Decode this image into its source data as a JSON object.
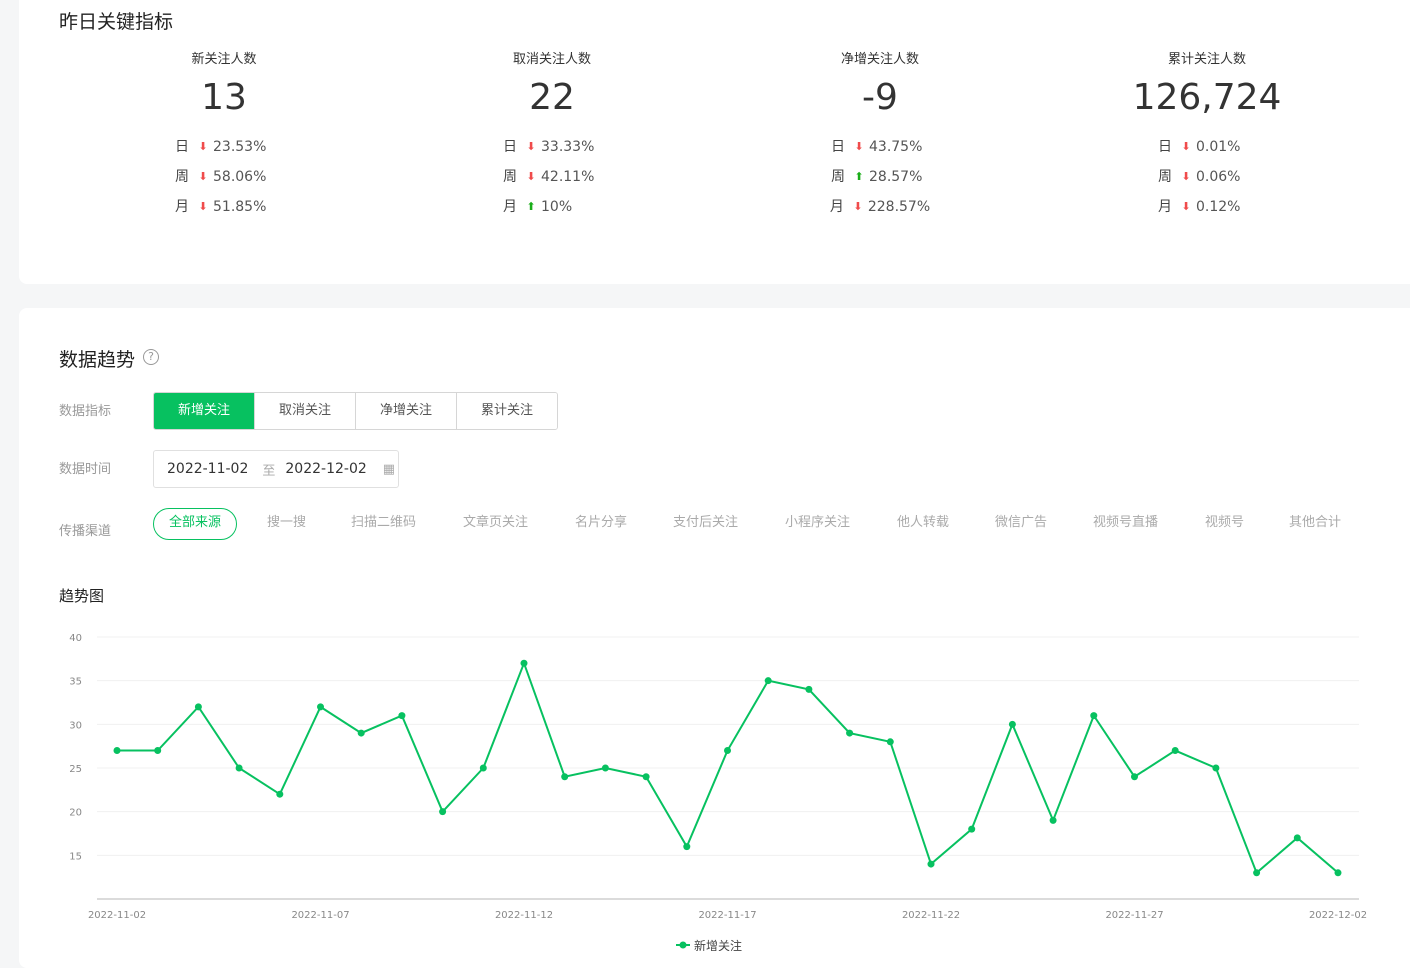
{
  "kpi": {
    "title": "昨日关键指标",
    "cards": [
      {
        "label": "新关注人数",
        "value": "13",
        "rows": [
          {
            "period": "日",
            "dir": "down",
            "pct": "23.53%"
          },
          {
            "period": "周",
            "dir": "down",
            "pct": "58.06%"
          },
          {
            "period": "月",
            "dir": "down",
            "pct": "51.85%"
          }
        ]
      },
      {
        "label": "取消关注人数",
        "value": "22",
        "rows": [
          {
            "period": "日",
            "dir": "down",
            "pct": "33.33%"
          },
          {
            "period": "周",
            "dir": "down",
            "pct": "42.11%"
          },
          {
            "period": "月",
            "dir": "up",
            "pct": "10%"
          }
        ]
      },
      {
        "label": "净增关注人数",
        "value": "-9",
        "rows": [
          {
            "period": "日",
            "dir": "down",
            "pct": "43.75%"
          },
          {
            "period": "周",
            "dir": "up",
            "pct": "28.57%"
          },
          {
            "period": "月",
            "dir": "down",
            "pct": "228.57%"
          }
        ]
      },
      {
        "label": "累计关注人数",
        "value": "126,724",
        "rows": [
          {
            "period": "日",
            "dir": "down",
            "pct": "0.01%"
          },
          {
            "period": "周",
            "dir": "down",
            "pct": "0.06%"
          },
          {
            "period": "月",
            "dir": "down",
            "pct": "0.12%"
          }
        ]
      }
    ]
  },
  "trend": {
    "title": "数据趋势",
    "help_icon": "?",
    "metric_label": "数据指标",
    "metrics": [
      "新增关注",
      "取消关注",
      "净增关注",
      "累计关注"
    ],
    "active_metric": 0,
    "time_label": "数据时间",
    "date_start": "2022-11-02",
    "date_sep": "至",
    "date_end": "2022-12-02",
    "calendar_icon": "▦",
    "channel_label": "传播渠道",
    "channels": [
      "全部来源",
      "搜一搜",
      "扫描二维码",
      "文章页关注",
      "名片分享",
      "支付后关注",
      "小程序关注",
      "他人转载",
      "微信广告",
      "视频号直播",
      "视频号",
      "其他合计"
    ],
    "active_channel": 0,
    "chart_title": "趋势图"
  },
  "colors": {
    "accent": "#07c160",
    "down": "#f04b4b",
    "up": "#1aad19"
  },
  "chart_data": {
    "type": "line",
    "title": "趋势图",
    "xlabel": "",
    "ylabel": "",
    "x": [
      "2022-11-02",
      "2022-11-03",
      "2022-11-04",
      "2022-11-05",
      "2022-11-06",
      "2022-11-07",
      "2022-11-08",
      "2022-11-09",
      "2022-11-10",
      "2022-11-11",
      "2022-11-12",
      "2022-11-13",
      "2022-11-14",
      "2022-11-15",
      "2022-11-16",
      "2022-11-17",
      "2022-11-18",
      "2022-11-19",
      "2022-11-20",
      "2022-11-21",
      "2022-11-22",
      "2022-11-23",
      "2022-11-24",
      "2022-11-25",
      "2022-11-26",
      "2022-11-27",
      "2022-11-28",
      "2022-11-29",
      "2022-11-30",
      "2022-12-01",
      "2022-12-02"
    ],
    "x_ticks": [
      "2022-11-02",
      "2022-11-07",
      "2022-11-12",
      "2022-11-17",
      "2022-11-22",
      "2022-11-27",
      "2022-12-02"
    ],
    "series": [
      {
        "name": "新增关注",
        "values": [
          27,
          27,
          32,
          25,
          22,
          32,
          29,
          31,
          20,
          25,
          37,
          24,
          25,
          24,
          16,
          27,
          35,
          34,
          29,
          28,
          14,
          18,
          30,
          19,
          31,
          24,
          27,
          25,
          13,
          17,
          13
        ]
      }
    ],
    "y_ticks": [
      15,
      20,
      25,
      30,
      35,
      40
    ],
    "ylim": [
      10,
      40
    ],
    "grid": true,
    "legend": "bottom-center"
  }
}
